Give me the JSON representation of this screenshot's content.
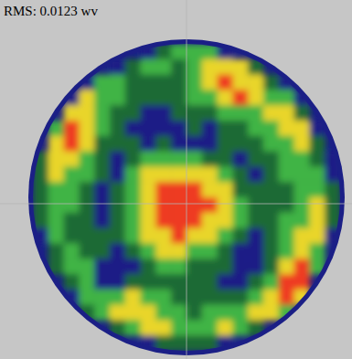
{
  "chart_data": {
    "type": "heatmap",
    "title": "RMS: 0.0123 wv",
    "tick_labels": false,
    "clim": [
      0,
      4
    ],
    "colors": [
      "#1b1f86",
      "#1f6a36",
      "#3fb445",
      "#e9d52a",
      "#ee3b22"
    ],
    "cells": [
      [
        null,
        null,
        null,
        null,
        null,
        null,
        null,
        0,
        1,
        2,
        2,
        2,
        0,
        null,
        null,
        null,
        null,
        null,
        null,
        null
      ],
      [
        null,
        null,
        null,
        null,
        null,
        0,
        1,
        2,
        2,
        1,
        2,
        3,
        3,
        3,
        1,
        null,
        null,
        null,
        null,
        null
      ],
      [
        null,
        null,
        null,
        0,
        2,
        2,
        1,
        1,
        1,
        1,
        2,
        3,
        4,
        3,
        3,
        1,
        0,
        null,
        null,
        null
      ],
      [
        null,
        null,
        0,
        3,
        2,
        2,
        1,
        1,
        1,
        1,
        2,
        2,
        3,
        4,
        3,
        2,
        2,
        0,
        null,
        null
      ],
      [
        null,
        null,
        3,
        3,
        2,
        1,
        1,
        0,
        0,
        1,
        1,
        1,
        2,
        2,
        2,
        3,
        3,
        1,
        null,
        null
      ],
      [
        null,
        2,
        4,
        3,
        2,
        1,
        0,
        0,
        0,
        0,
        1,
        0,
        1,
        1,
        2,
        2,
        3,
        3,
        0,
        null
      ],
      [
        null,
        3,
        4,
        3,
        1,
        1,
        1,
        0,
        1,
        0,
        0,
        0,
        1,
        1,
        1,
        2,
        2,
        3,
        1,
        null
      ],
      [
        1,
        3,
        3,
        2,
        1,
        0,
        1,
        2,
        2,
        2,
        2,
        1,
        1,
        0,
        1,
        1,
        2,
        2,
        1,
        0
      ],
      [
        1,
        3,
        2,
        2,
        1,
        0,
        2,
        3,
        3,
        3,
        3,
        3,
        2,
        1,
        0,
        1,
        2,
        2,
        2,
        0
      ],
      [
        1,
        2,
        2,
        1,
        0,
        1,
        2,
        3,
        4,
        4,
        4,
        3,
        3,
        1,
        1,
        1,
        1,
        2,
        2,
        1
      ],
      [
        1,
        2,
        2,
        1,
        0,
        1,
        2,
        3,
        4,
        4,
        4,
        4,
        3,
        2,
        1,
        1,
        1,
        2,
        3,
        1
      ],
      [
        1,
        2,
        1,
        1,
        0,
        1,
        2,
        3,
        4,
        4,
        4,
        3,
        3,
        2,
        1,
        1,
        2,
        2,
        3,
        1
      ],
      [
        0,
        2,
        1,
        1,
        1,
        1,
        2,
        3,
        3,
        4,
        3,
        3,
        2,
        1,
        0,
        1,
        2,
        3,
        3,
        0
      ],
      [
        null,
        1,
        2,
        1,
        1,
        0,
        1,
        2,
        3,
        3,
        2,
        2,
        1,
        0,
        0,
        1,
        2,
        3,
        2,
        null
      ],
      [
        null,
        1,
        2,
        2,
        0,
        0,
        0,
        1,
        2,
        2,
        1,
        1,
        1,
        0,
        0,
        1,
        3,
        4,
        2,
        null
      ],
      [
        null,
        null,
        1,
        2,
        0,
        0,
        1,
        1,
        1,
        1,
        1,
        1,
        0,
        0,
        1,
        2,
        4,
        4,
        null,
        null
      ],
      [
        null,
        null,
        0,
        2,
        2,
        2,
        3,
        2,
        2,
        1,
        1,
        1,
        1,
        1,
        2,
        3,
        4,
        3,
        null,
        null
      ],
      [
        null,
        null,
        null,
        1,
        2,
        3,
        3,
        3,
        2,
        2,
        1,
        2,
        2,
        2,
        3,
        3,
        2,
        null,
        null,
        null
      ],
      [
        null,
        null,
        null,
        null,
        null,
        1,
        2,
        3,
        3,
        2,
        2,
        2,
        3,
        2,
        1,
        null,
        null,
        null,
        null,
        null
      ],
      [
        null,
        null,
        null,
        null,
        null,
        null,
        null,
        0,
        1,
        1,
        1,
        1,
        0,
        null,
        null,
        null,
        null,
        null,
        null,
        null
      ]
    ]
  }
}
